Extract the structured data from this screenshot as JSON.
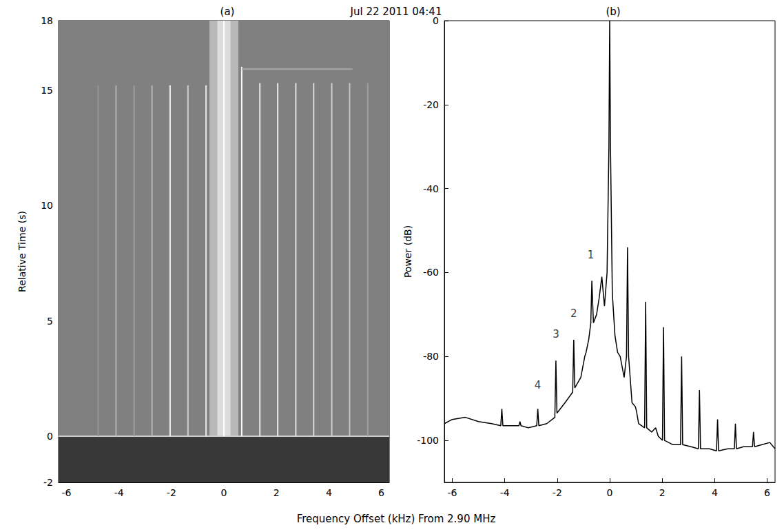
{
  "title": "Jul 22 2011 04:41",
  "xlabel": "Frequency Offset (kHz) From 2.90 MHz",
  "chart_data": [
    {
      "type": "spectrogram",
      "panel": "(a)",
      "ylabel": "Relative Time (s)",
      "xlim": [
        -6.3,
        6.3
      ],
      "xticks": [
        -6,
        -4,
        -2,
        0,
        2,
        4,
        6
      ],
      "ylim": [
        -2,
        18
      ],
      "yticks": [
        -2,
        0,
        5,
        10,
        15,
        18
      ],
      "regions": [
        {
          "x": [
            -6.3,
            6.3
          ],
          "t": [
            0,
            18
          ],
          "color": "#808080"
        },
        {
          "x": [
            -6.3,
            6.3
          ],
          "t": [
            -2,
            0
          ],
          "color": "#383838"
        },
        {
          "x": [
            -0.55,
            0.55
          ],
          "t": [
            0,
            18
          ],
          "color": "#b8b8b8"
        },
        {
          "x": [
            -0.25,
            0.25
          ],
          "t": [
            0,
            18
          ],
          "color": "#dcdcdc"
        }
      ],
      "traces": [
        {
          "x": [
            -6.3,
            6.3
          ],
          "t": [
            0,
            0
          ],
          "color": "#d0d0d0"
        },
        {
          "x": [
            0,
            0
          ],
          "t": [
            0,
            18
          ],
          "color": "#ffffff"
        },
        {
          "x": [
            -0.68,
            -0.68
          ],
          "t": [
            0,
            15.2
          ],
          "color": "#e6e6e6"
        },
        {
          "x": [
            -1.37,
            -1.37
          ],
          "t": [
            0,
            15.2
          ],
          "color": "#cfcfcf"
        },
        {
          "x": [
            -2.05,
            -2.05
          ],
          "t": [
            0,
            15.2
          ],
          "color": "#f0f0f0"
        },
        {
          "x": [
            -2.74,
            -2.74
          ],
          "t": [
            0,
            15.2
          ],
          "color": "#b4b4b4"
        },
        {
          "x": [
            -3.42,
            -3.42
          ],
          "t": [
            0,
            15.2
          ],
          "color": "#9c9c9c"
        },
        {
          "x": [
            -4.11,
            -4.11
          ],
          "t": [
            0,
            15.2
          ],
          "color": "#b0b0b0"
        },
        {
          "x": [
            -4.79,
            -4.79
          ],
          "t": [
            0,
            15.2
          ],
          "color": "#949494"
        },
        {
          "x": [
            0.68,
            0.68
          ],
          "t": [
            0,
            16
          ],
          "color": "#f5f5f5"
        },
        {
          "x": [
            1.37,
            1.37
          ],
          "t": [
            0,
            15.3
          ],
          "color": "#e6e6e6"
        },
        {
          "x": [
            2.05,
            2.05
          ],
          "t": [
            0,
            15.3
          ],
          "color": "#e6e6e6"
        },
        {
          "x": [
            2.74,
            2.74
          ],
          "t": [
            0,
            15.3
          ],
          "color": "#e0e0e0"
        },
        {
          "x": [
            3.42,
            3.42
          ],
          "t": [
            0,
            15.3
          ],
          "color": "#dadada"
        },
        {
          "x": [
            4.11,
            4.11
          ],
          "t": [
            0,
            15.3
          ],
          "color": "#d0d0d0"
        },
        {
          "x": [
            4.79,
            4.79
          ],
          "t": [
            0,
            15.3
          ],
          "color": "#c4c4c4"
        },
        {
          "x": [
            5.48,
            5.48
          ],
          "t": [
            0,
            15.3
          ],
          "color": "#a0a0a0"
        },
        {
          "x": [
            0.68,
            4.9
          ],
          "t": [
            15.9,
            15.9
          ],
          "color": "#a8a8a8"
        }
      ]
    },
    {
      "type": "line",
      "panel": "(b)",
      "ylabel": "Power (dB)",
      "color": "#000000",
      "xlim": [
        -6.3,
        6.3
      ],
      "xticks": [
        -6,
        -4,
        -2,
        0,
        2,
        4,
        6
      ],
      "ylim": [
        -110,
        0
      ],
      "yticks": [
        -100,
        -80,
        -60,
        -40,
        -20,
        0
      ],
      "x": [
        -6.3,
        -6.0,
        -5.5,
        -5.0,
        -4.5,
        -4.15,
        -4.11,
        -4.07,
        -3.8,
        -3.46,
        -3.42,
        -3.38,
        -3.1,
        -2.78,
        -2.74,
        -2.7,
        -2.4,
        -2.09,
        -2.05,
        -2.01,
        -1.7,
        -1.41,
        -1.37,
        -1.33,
        -1.1,
        -0.95,
        -0.9,
        -0.8,
        -0.72,
        -0.68,
        -0.62,
        -0.5,
        -0.4,
        -0.3,
        -0.2,
        -0.1,
        -0.03,
        0,
        0.03,
        0.1,
        0.2,
        0.3,
        0.4,
        0.55,
        0.64,
        0.68,
        0.72,
        0.85,
        0.98,
        1.02,
        1.1,
        1.33,
        1.37,
        1.41,
        1.6,
        1.75,
        1.85,
        2.01,
        2.05,
        2.09,
        2.4,
        2.7,
        2.74,
        2.78,
        3.1,
        3.38,
        3.42,
        3.46,
        3.8,
        4.07,
        4.11,
        4.15,
        4.5,
        4.75,
        4.79,
        4.83,
        5.1,
        5.44,
        5.48,
        5.52,
        5.8,
        6.1,
        6.3
      ],
      "values": [
        -96,
        -95,
        -94.5,
        -95.5,
        -96,
        -96.5,
        -92.5,
        -96.5,
        -96.5,
        -96.5,
        -95.5,
        -96.5,
        -97,
        -96.5,
        -92.5,
        -96.5,
        -96,
        -94.5,
        -81,
        -93.5,
        -91,
        -88.5,
        -76,
        -87.5,
        -85,
        -80,
        -79,
        -76,
        -72,
        -62,
        -72,
        -70,
        -66,
        -61,
        -68,
        -60,
        -30,
        0,
        -30,
        -65,
        -75,
        -79,
        -80,
        -85,
        -80,
        -54,
        -80,
        -91,
        -92,
        -93,
        -96,
        -97,
        -67,
        -97,
        -98,
        -97,
        -99,
        -100,
        -73,
        -100,
        -101,
        -101,
        -80,
        -101,
        -101.5,
        -102,
        -88,
        -102,
        -102,
        -102.5,
        -95,
        -102.5,
        -102,
        -102,
        -96,
        -102,
        -101.5,
        -101.5,
        -98,
        -101.5,
        -101,
        -100.5,
        -102
      ],
      "annotations": [
        {
          "text": "1",
          "x": -0.72,
          "y": -57
        },
        {
          "text": "2",
          "x": -1.37,
          "y": -71
        },
        {
          "text": "3",
          "x": -2.05,
          "y": -76
        },
        {
          "text": "4",
          "x": -2.74,
          "y": -88
        }
      ]
    }
  ]
}
